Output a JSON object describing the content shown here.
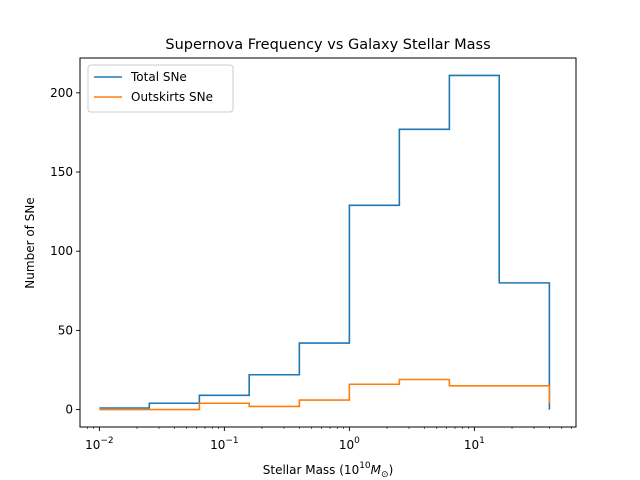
{
  "chart_data": {
    "type": "line",
    "drawstyle": "steps-post",
    "title": "Supernova Frequency vs Galaxy Stellar Mass",
    "xlabel": "Stellar Mass (10",
    "xlabel_sup": "10",
    "xlabel_sym": "M",
    "xlabel_sub": "⊙",
    "xlabel_close": ")",
    "ylabel": "Number of SNe",
    "xscale": "log",
    "xlim": [
      0.007,
      65
    ],
    "ylim": [
      -11,
      222
    ],
    "xticks": [
      {
        "value": 0.01,
        "base": "10",
        "exp": "−2"
      },
      {
        "value": 0.1,
        "base": "10",
        "exp": "−1"
      },
      {
        "value": 1,
        "base": "10",
        "exp": "0"
      },
      {
        "value": 10,
        "base": "10",
        "exp": "1"
      }
    ],
    "yticks": [
      0,
      50,
      100,
      150,
      200
    ],
    "bin_edges": [
      0.01,
      0.0251,
      0.0631,
      0.158,
      0.398,
      1.0,
      2.51,
      6.31,
      15.8,
      39.8
    ],
    "series": [
      {
        "name": "Total SNe",
        "color": "#1f77b4",
        "values": [
          1,
          4,
          9,
          22,
          42,
          129,
          177,
          211,
          80
        ],
        "end_value": 0
      },
      {
        "name": "Outskirts SNe",
        "color": "#ff7f0e",
        "values": [
          0,
          0,
          4,
          2,
          6,
          16,
          19,
          15,
          15
        ],
        "end_value": 4
      }
    ],
    "legend": "top-left",
    "grid": false
  }
}
